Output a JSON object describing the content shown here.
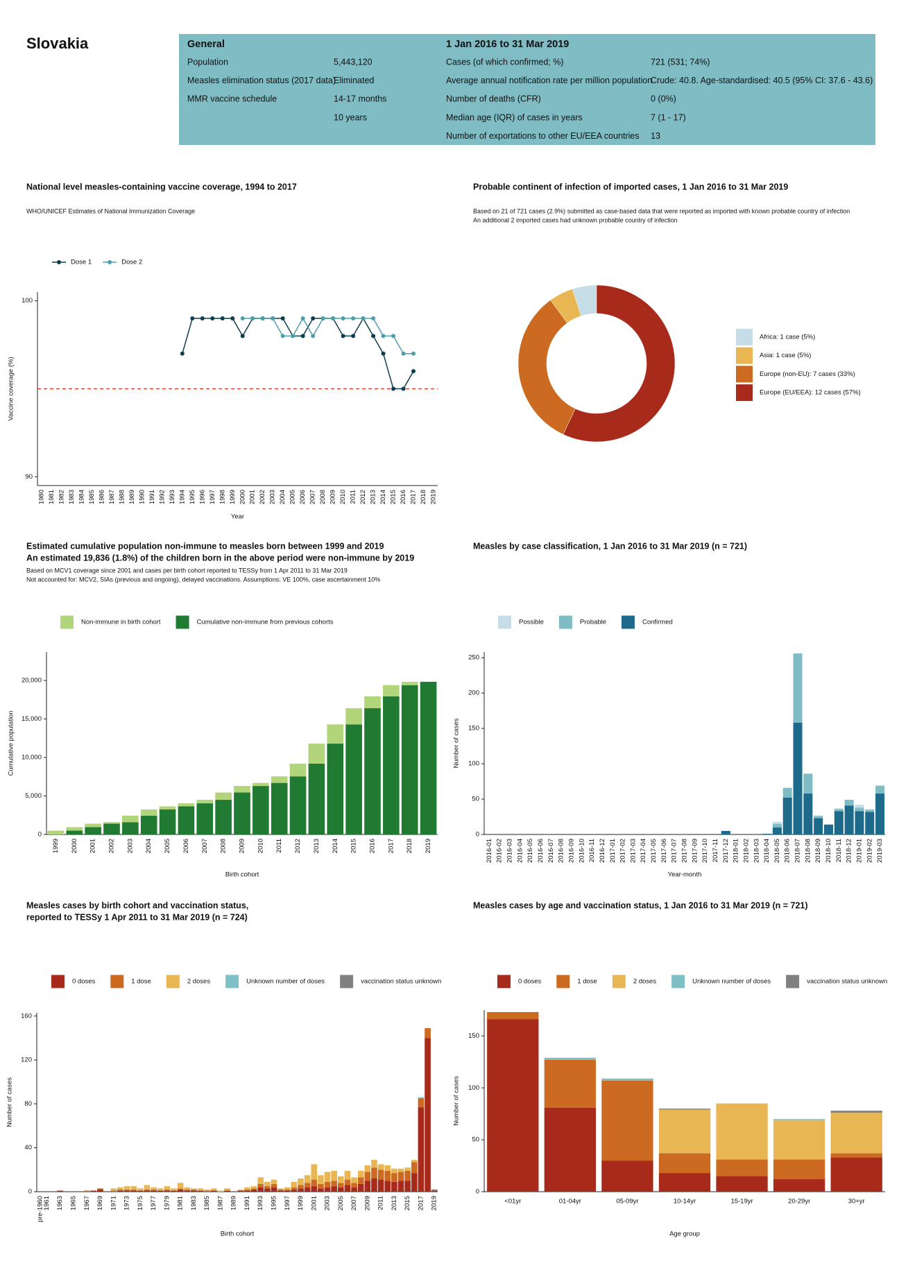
{
  "header": {
    "country": "Slovakia",
    "general": {
      "title": "General",
      "rows": [
        {
          "label": "Population",
          "value": "5,443,120"
        },
        {
          "label": "Measles elimination status (2017 data)",
          "value": "Eliminated"
        },
        {
          "label": "MMR vaccine schedule",
          "value": "14-17 months"
        },
        {
          "value": "10 years"
        }
      ]
    },
    "period": {
      "title": "1 Jan 2016 to 31 Mar 2019",
      "rows": [
        {
          "label": "Cases (of which confirmed; %)",
          "value": "721 (531; 74%)"
        },
        {
          "label": "Average annual notification rate per million population",
          "value": "Crude: 40.8. Age-standardised: 40.5 (95% CI: 37.6 - 43.6)"
        },
        {
          "label": "Number of deaths (CFR)",
          "value": "0 (0%)"
        },
        {
          "label": "Median age (IQR) of cases in years",
          "value": "7 (1 - 17)"
        },
        {
          "label": "Number of exportations to other EU/EEA countries",
          "value": "13"
        }
      ]
    }
  },
  "chart_data": [
    {
      "type": "line",
      "title_lines": [
        "National level measles-containing vaccine coverage, 1994 to 2017"
      ],
      "subtitle_lines": [
        "WHO/UNICEF Estimates of National Immunization Coverage"
      ],
      "x_label": "Year",
      "y_label": "Vaccine coverage (%)",
      "categories": [
        "1980",
        "1981",
        "1982",
        "1983",
        "1984",
        "1985",
        "1986",
        "1987",
        "1988",
        "1989",
        "1990",
        "1991",
        "1992",
        "1993",
        "1994",
        "1995",
        "1996",
        "1997",
        "1998",
        "1999",
        "2000",
        "2001",
        "2002",
        "2003",
        "2004",
        "2005",
        "2006",
        "2007",
        "2008",
        "2009",
        "2010",
        "2011",
        "2012",
        "2013",
        "2014",
        "2015",
        "2016",
        "2017",
        "2018",
        "2019"
      ],
      "series": [
        {
          "name": "Dose 1",
          "color": "#0e3d4f",
          "values": [
            null,
            null,
            null,
            null,
            null,
            null,
            null,
            null,
            null,
            null,
            null,
            null,
            null,
            null,
            97,
            99,
            99,
            99,
            99,
            99,
            98,
            99,
            99,
            99,
            99,
            98,
            98,
            99,
            99,
            99,
            98,
            98,
            99,
            98,
            97,
            95,
            95,
            96,
            null,
            null
          ]
        },
        {
          "name": "Dose 2",
          "color": "#4d9fad",
          "values": [
            null,
            null,
            null,
            null,
            null,
            null,
            null,
            null,
            null,
            null,
            null,
            null,
            null,
            null,
            null,
            null,
            null,
            null,
            null,
            null,
            99,
            99,
            99,
            99,
            98,
            98,
            99,
            98,
            99,
            99,
            99,
            99,
            99,
            99,
            98,
            98,
            97,
            97,
            null,
            null
          ]
        }
      ],
      "ylim": [
        89.5,
        100.5
      ],
      "yticks": [
        90,
        100
      ],
      "reference_line": {
        "value": 95,
        "color": "#d7301f"
      },
      "legend_position": "top-left"
    },
    {
      "type": "pie",
      "donut": true,
      "title_lines": [
        "Probable continent of infection of imported cases, 1 Jan 2016 to 31 Mar 2019"
      ],
      "subtitle_lines": [
        "Based on 21 of 721 cases (2.9%) submitted as case-based data that were reported as imported with known probable country of infection",
        "An additional 2 imported cases had unknown probable country of infection"
      ],
      "categories": [
        "Africa: 1 case (5%)",
        "Asia: 1 case (5%)",
        "Europe (non-EU): 7 cases (33%)",
        "Europe (EU/EEA): 12 cases (57%)"
      ],
      "values": [
        5,
        5,
        33,
        57
      ],
      "colors": [
        "#c6dde8",
        "#e8b653",
        "#cc6a22",
        "#a82a1b"
      ],
      "legend_position": "right"
    },
    {
      "type": "bar",
      "stacked": true,
      "stack_from": "last",
      "title_lines": [
        "Estimated cumulative population non-immune to measles born between 1999 and 2019",
        "An estimated 19,836 (1.8%) of the children born in the above period were non-immune by 2019"
      ],
      "subtitle_lines": [
        "Based on MCV1 coverage since 2001 and cases per birth cohort reported to TESSy from 1 Apr 2011 to 31 Mar 2019",
        "Not accounted for: MCV2, SIAs (previous and ongoing), delayed vaccinations. Assumptions: VE 100%, case ascertainment 10%"
      ],
      "x_label": "Birth cohort",
      "y_label": "Cumulative population",
      "categories": [
        "1999",
        "2000",
        "2001",
        "2002",
        "2003",
        "2004",
        "2005",
        "2006",
        "2007",
        "2008",
        "2009",
        "2010",
        "2011",
        "2012",
        "2013",
        "2014",
        "2015",
        "2016",
        "2017",
        "2018",
        "2019"
      ],
      "series": [
        {
          "name": "Non-immune in birth cohort",
          "color": "#b2d47a",
          "values": [
            500,
            450,
            450,
            200,
            850,
            800,
            400,
            400,
            450,
            950,
            850,
            400,
            850,
            1650,
            2600,
            2500,
            2100,
            1550,
            1450,
            436,
            0
          ]
        },
        {
          "name": "Cumulative non-immune from previous cohorts",
          "color": "#217a32",
          "values": [
            0,
            500,
            950,
            1400,
            1600,
            2450,
            3250,
            3650,
            4050,
            4500,
            5450,
            6300,
            6700,
            7550,
            9200,
            11800,
            14300,
            16400,
            17950,
            19400,
            19836
          ]
        }
      ],
      "ylim": [
        0,
        23700
      ],
      "yticks": [
        0,
        {
          "value": 5000,
          "label": "5,000"
        },
        {
          "value": 10000,
          "label": "10,000"
        },
        {
          "value": 15000,
          "label": "15,000"
        },
        {
          "value": 20000,
          "label": "20,000"
        }
      ],
      "legend_position": "top-left"
    },
    {
      "type": "bar",
      "stacked": true,
      "stack_from": "last",
      "title_lines": [
        "Measles by case classification, 1 Jan 2016 to 31 Mar 2019 (n = 721)"
      ],
      "x_label": "Year-month",
      "y_label": "Number of cases",
      "categories": [
        "2016-01",
        "2016-02",
        "2016-03",
        "2016-04",
        "2016-05",
        "2016-06",
        "2016-07",
        "2016-08",
        "2016-09",
        "2016-10",
        "2016-11",
        "2016-12",
        "2017-01",
        "2017-02",
        "2017-03",
        "2017-04",
        "2017-05",
        "2017-06",
        "2017-07",
        "2017-08",
        "2017-09",
        "2017-10",
        "2017-11",
        "2017-12",
        "2018-01",
        "2018-02",
        "2018-03",
        "2018-04",
        "2018-05",
        "2018-06",
        "2018-07",
        "2018-08",
        "2018-09",
        "2018-10",
        "2018-11",
        "2018-12",
        "2019-01",
        "2019-02",
        "2019-03"
      ],
      "series": [
        {
          "name": "Possible",
          "color": "#c6dde8",
          "values": [
            0,
            0,
            0,
            0,
            0,
            0,
            0,
            0,
            0,
            0,
            0,
            0,
            0,
            0,
            0,
            0,
            0,
            0,
            0,
            0,
            0,
            0,
            0,
            0,
            0,
            0,
            0,
            0,
            3,
            0,
            0,
            0,
            1,
            0,
            1,
            0,
            4,
            1,
            0
          ]
        },
        {
          "name": "Probable",
          "color": "#7fbcc4",
          "values": [
            0,
            0,
            0,
            0,
            0,
            0,
            0,
            0,
            0,
            0,
            0,
            0,
            0,
            0,
            0,
            0,
            0,
            0,
            0,
            0,
            0,
            0,
            0,
            0,
            0,
            0,
            0,
            0,
            5,
            14,
            98,
            28,
            3,
            0,
            3,
            8,
            5,
            3,
            11
          ]
        },
        {
          "name": "Confirmed",
          "color": "#1d6a8a",
          "values": [
            0,
            0,
            0,
            0,
            0,
            0,
            0,
            0,
            0,
            0,
            0,
            0,
            0,
            0,
            0,
            0,
            0,
            0,
            0,
            0,
            0,
            0,
            0,
            5,
            0,
            0,
            0,
            1,
            10,
            52,
            158,
            58,
            23,
            14,
            33,
            41,
            33,
            32,
            58
          ]
        }
      ],
      "ylim": [
        0,
        258
      ],
      "yticks": [
        0,
        50,
        100,
        150,
        200,
        250
      ],
      "legend_position": "top-left"
    },
    {
      "type": "bar",
      "stacked": true,
      "stack_from": "first",
      "title_lines": [
        "Measles cases by birth cohort and vaccination status,",
        "reported to TESSy 1 Apr 2011 to 31 Mar 2019 (n = 724)"
      ],
      "x_label": "Birth cohort",
      "y_label": "Number of cases",
      "categories": [
        "pre-1960",
        "1961",
        null,
        "1963",
        null,
        "1965",
        null,
        "1967",
        null,
        "1969",
        null,
        "1971",
        null,
        "1973",
        null,
        "1975",
        null,
        "1977",
        null,
        "1979",
        null,
        "1981",
        null,
        "1983",
        null,
        "1985",
        null,
        "1987",
        null,
        "1989",
        null,
        "1991",
        null,
        "1993",
        null,
        "1995",
        null,
        "1997",
        null,
        "1999",
        null,
        "2001",
        null,
        "2003",
        null,
        "2005",
        null,
        "2007",
        null,
        "2009",
        null,
        "2011",
        null,
        "2013",
        null,
        "2015",
        null,
        "2017",
        null,
        "2019"
      ],
      "series": [
        {
          "name": "0 doses",
          "color": "#a82a1b",
          "values": [
            0,
            0,
            0,
            1,
            0,
            0,
            0,
            0,
            1,
            2,
            0,
            0,
            1,
            1,
            1,
            1,
            1,
            1,
            1,
            1,
            1,
            2,
            1,
            1,
            1,
            0,
            1,
            0,
            1,
            0,
            1,
            1,
            2,
            4,
            3,
            4,
            1,
            1,
            2,
            3,
            4,
            5,
            3,
            4,
            5,
            4,
            6,
            4,
            7,
            10,
            12,
            11,
            10,
            9,
            10,
            10,
            17,
            77,
            140,
            1
          ]
        },
        {
          "name": "1 dose",
          "color": "#cc6a22",
          "values": [
            0,
            0,
            0,
            0,
            0,
            0,
            0,
            1,
            0,
            1,
            0,
            1,
            1,
            1,
            1,
            0,
            1,
            1,
            0,
            1,
            0,
            1,
            1,
            1,
            0,
            1,
            0,
            0,
            0,
            0,
            0,
            1,
            1,
            3,
            2,
            3,
            1,
            1,
            2,
            3,
            4,
            6,
            4,
            5,
            5,
            4,
            5,
            4,
            6,
            8,
            10,
            9,
            9,
            8,
            8,
            9,
            10,
            8,
            9,
            0
          ]
        },
        {
          "name": "2 doses",
          "color": "#e8b653",
          "values": [
            0,
            0,
            0,
            0,
            0,
            0,
            0,
            0,
            0,
            0,
            0,
            2,
            2,
            3,
            3,
            2,
            4,
            2,
            2,
            3,
            2,
            5,
            2,
            1,
            2,
            1,
            2,
            1,
            2,
            0,
            1,
            2,
            2,
            6,
            4,
            4,
            1,
            2,
            5,
            6,
            7,
            14,
            8,
            9,
            9,
            6,
            8,
            5,
            6,
            6,
            7,
            5,
            5,
            4,
            3,
            3,
            2,
            0,
            0,
            0
          ]
        },
        {
          "name": "Unknown number of doses",
          "color": "#7fbfc6",
          "values": [
            0,
            0,
            0,
            0,
            0,
            0,
            0,
            0,
            0,
            0,
            0,
            0,
            0,
            0,
            0,
            0,
            0,
            0,
            0,
            0,
            0,
            0,
            0,
            0,
            0,
            0,
            0,
            0,
            0,
            0,
            0,
            0,
            0,
            0,
            0,
            0,
            0,
            0,
            0,
            0,
            0,
            0,
            0,
            0,
            0,
            0,
            0,
            0,
            0,
            0,
            0,
            0,
            0,
            0,
            0,
            0,
            0,
            1,
            0,
            0
          ]
        },
        {
          "name": "vaccination status unknown",
          "color": "#808080",
          "values": [
            0,
            0,
            0,
            0,
            0,
            0,
            0,
            0,
            0,
            0,
            0,
            0,
            0,
            0,
            0,
            0,
            0,
            0,
            0,
            0,
            0,
            0,
            0,
            0,
            0,
            0,
            0,
            0,
            0,
            0,
            0,
            0,
            0,
            0,
            0,
            0,
            0,
            0,
            0,
            0,
            0,
            0,
            0,
            0,
            0,
            0,
            0,
            0,
            0,
            0,
            0,
            0,
            0,
            0,
            0,
            0,
            0,
            0,
            0,
            1
          ]
        }
      ],
      "ylim": [
        0,
        163
      ],
      "yticks": [
        0,
        40,
        80,
        120,
        160
      ],
      "legend_position": "top-left"
    },
    {
      "type": "bar",
      "stacked": true,
      "stack_from": "first",
      "title_lines": [
        "Measles cases by age and vaccination status, 1 Jan 2016 to 31 Mar 2019 (n = 721)"
      ],
      "x_label": "Age group",
      "y_label": "Number of cases",
      "categories": [
        "<01yr",
        "01-04yr",
        "05-09yr",
        "10-14yr",
        "15-19yr",
        "20-29yr",
        "30+yr"
      ],
      "series": [
        {
          "name": "0 doses",
          "color": "#a82a1b",
          "values": [
            166,
            81,
            30,
            18,
            15,
            12,
            33
          ]
        },
        {
          "name": "1 dose",
          "color": "#cc6a22",
          "values": [
            7,
            46,
            77,
            19,
            16,
            19,
            4
          ]
        },
        {
          "name": "2 doses",
          "color": "#e8b653",
          "values": [
            0,
            0,
            0,
            42,
            54,
            38,
            39
          ]
        },
        {
          "name": "Unknown number of doses",
          "color": "#7fbfc6",
          "values": [
            0,
            2,
            2,
            0,
            0,
            1,
            0
          ]
        },
        {
          "name": "vaccination status unknown",
          "color": "#808080",
          "values": [
            0,
            0,
            0,
            1,
            0,
            0,
            2
          ]
        }
      ],
      "ylim": [
        0,
        175
      ],
      "yticks": [
        0,
        50,
        100,
        150
      ],
      "legend_position": "top-left"
    }
  ]
}
